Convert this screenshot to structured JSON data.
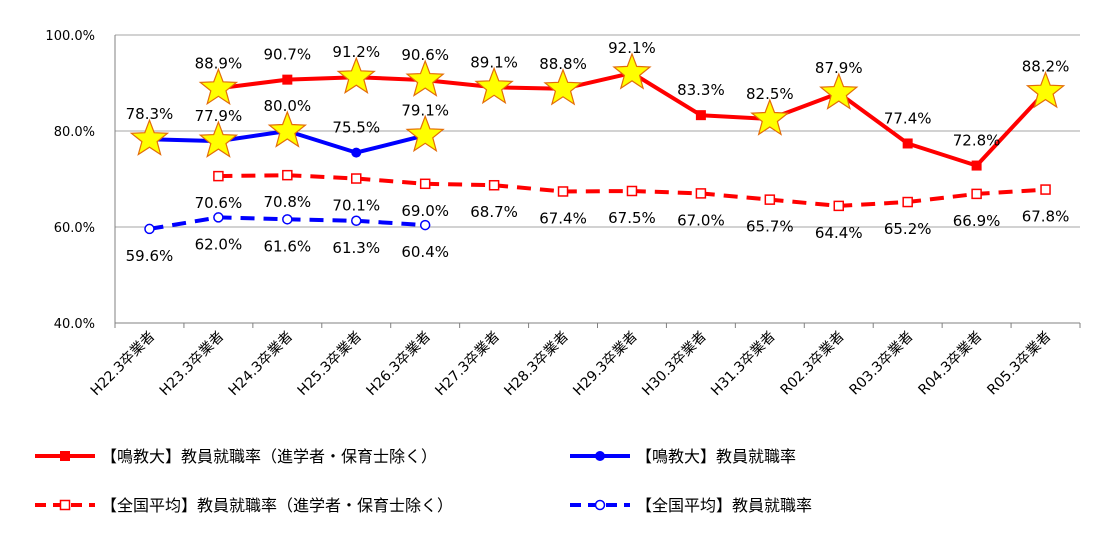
{
  "colors": {
    "red": "#ff0000",
    "blue": "#0000ff",
    "star_fill": "#ffff00",
    "star_stroke": "#e36c09",
    "grid": "#a6a6a6",
    "axis": "#808080",
    "text": "#000000"
  },
  "chart_data": {
    "type": "line",
    "title": "",
    "xlabel": "",
    "ylabel": "",
    "ylim": [
      40.0,
      100.0
    ],
    "y_ticks": [
      "40.0%",
      "60.0%",
      "80.0%",
      "100.0%"
    ],
    "y_tick_values": [
      40,
      60,
      80,
      100
    ],
    "grid": true,
    "legend_position": "bottom",
    "categories": [
      "H22.3卒業者",
      "H23.3卒業者",
      "H24.3卒業者",
      "H25.3卒業者",
      "H26.3卒業者",
      "H27.3卒業者",
      "H28.3卒業者",
      "H29.3卒業者",
      "H30.3卒業者",
      "H31.3卒業者",
      "R02.3卒業者",
      "R03.3卒業者",
      "R04.3卒業者",
      "R05.3卒業者"
    ],
    "series": [
      {
        "name": "【鳴教大】教員就職率（進学者・保育士除く）",
        "color": "#ff0000",
        "dash": false,
        "marker": "filled-square",
        "values": [
          null,
          88.9,
          90.7,
          91.2,
          90.6,
          89.1,
          88.8,
          92.1,
          83.3,
          82.5,
          87.9,
          77.4,
          72.8,
          88.2
        ],
        "labels": [
          null,
          "88.9%",
          "90.7%",
          "91.2%",
          "90.6%",
          "89.1%",
          "88.8%",
          "92.1%",
          "83.3%",
          "82.5%",
          "87.9%",
          "77.4%",
          "72.8%",
          "88.2%"
        ],
        "stars": [
          false,
          true,
          false,
          true,
          true,
          true,
          true,
          true,
          false,
          true,
          true,
          false,
          false,
          true
        ]
      },
      {
        "name": "【鳴教大】教員就職率",
        "color": "#0000ff",
        "dash": false,
        "marker": "filled-circle",
        "values": [
          78.3,
          77.9,
          80.0,
          75.5,
          79.1,
          null,
          null,
          null,
          null,
          null,
          null,
          null,
          null,
          null
        ],
        "labels": [
          "78.3%",
          "77.9%",
          "80.0%",
          "75.5%",
          "79.1%",
          null,
          null,
          null,
          null,
          null,
          null,
          null,
          null,
          null
        ],
        "stars": [
          true,
          true,
          true,
          false,
          true,
          false,
          false,
          false,
          false,
          false,
          false,
          false,
          false,
          false
        ]
      },
      {
        "name": "【全国平均】教員就職率（進学者・保育士除く）",
        "color": "#ff0000",
        "dash": true,
        "marker": "open-square",
        "values": [
          null,
          70.6,
          70.8,
          70.1,
          69.0,
          68.7,
          67.4,
          67.5,
          67.0,
          65.7,
          64.4,
          65.2,
          66.9,
          67.8
        ],
        "labels": [
          null,
          "70.6%",
          "70.8%",
          "70.1%",
          "69.0%",
          "68.7%",
          "67.4%",
          "67.5%",
          "67.0%",
          "65.7%",
          "64.4%",
          "65.2%",
          "66.9%",
          "67.8%"
        ],
        "stars": []
      },
      {
        "name": "【全国平均】教員就職率",
        "color": "#0000ff",
        "dash": true,
        "marker": "open-circle",
        "values": [
          59.6,
          62.0,
          61.6,
          61.3,
          60.4,
          null,
          null,
          null,
          null,
          null,
          null,
          null,
          null,
          null
        ],
        "labels": [
          "59.6%",
          "62.0%",
          "61.6%",
          "61.3%",
          "60.4%",
          null,
          null,
          null,
          null,
          null,
          null,
          null,
          null,
          null
        ],
        "stars": []
      }
    ]
  }
}
